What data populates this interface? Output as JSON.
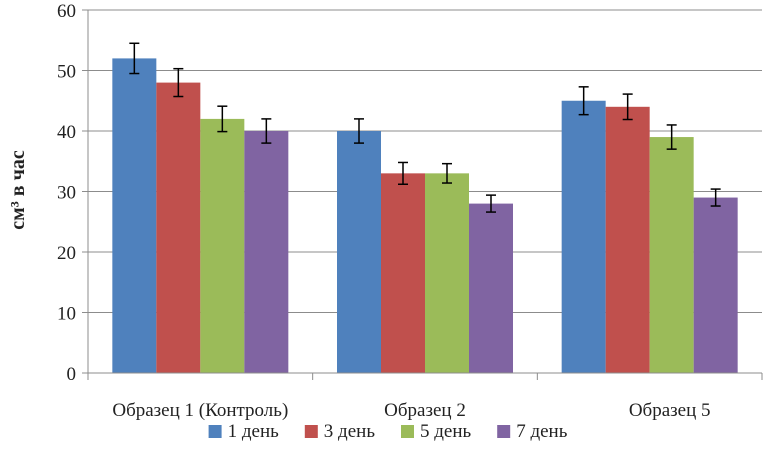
{
  "chart_data": {
    "type": "bar",
    "title": "",
    "xlabel": "",
    "ylabel": "см³ в час",
    "ylim": [
      0,
      60
    ],
    "yticks": [
      0,
      10,
      20,
      30,
      40,
      50,
      60
    ],
    "grid": true,
    "legend_position": "bottom",
    "categories": [
      "Образец 1 (Контроль)",
      "Образец 2",
      "Образец 5"
    ],
    "series": [
      {
        "name": "1 день",
        "color": "#4f81bd",
        "values": [
          52,
          40,
          45
        ],
        "errors": [
          2.5,
          2,
          2.3
        ]
      },
      {
        "name": "3 день",
        "color": "#c0504d",
        "values": [
          48,
          33,
          44
        ],
        "errors": [
          2.3,
          1.8,
          2.1
        ]
      },
      {
        "name": "5 день",
        "color": "#9bbb59",
        "values": [
          42,
          33,
          39
        ],
        "errors": [
          2.1,
          1.6,
          2
        ]
      },
      {
        "name": "7 день",
        "color": "#8064a2",
        "values": [
          40,
          28,
          29
        ],
        "errors": [
          2,
          1.4,
          1.4
        ]
      }
    ]
  }
}
